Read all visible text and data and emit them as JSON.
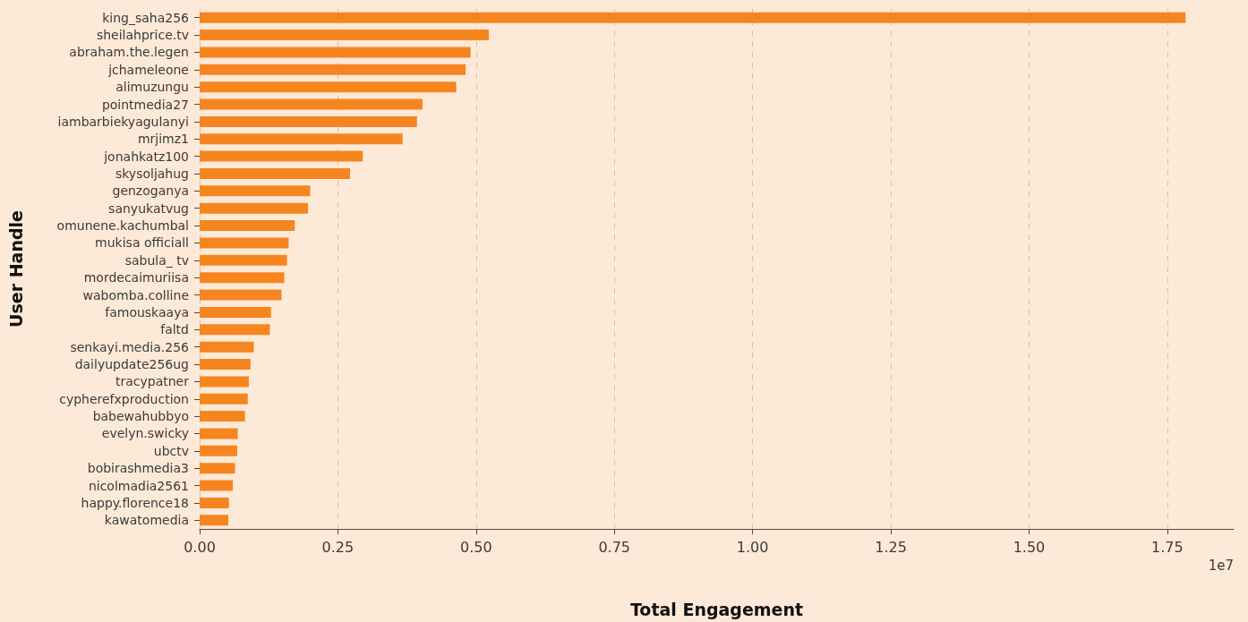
{
  "chart_data": {
    "type": "bar",
    "orientation": "horizontal",
    "xlabel": "Total Engagement",
    "ylabel": "User Handle",
    "annotations": [
      "1e7"
    ],
    "categories": [
      "king_saha256",
      "sheilahprice.tv",
      "abraham.the.legen",
      "jchameleone",
      "alimuzungu",
      "pointmedia27",
      "iambarbiekyagulanyi",
      "mrjimz1",
      "jonahkatz100",
      "skysoljahug",
      "genzoganya",
      "sanyukatvug",
      "omunene.kachumbal",
      "mukisa officiall",
      "sabula_ tv",
      "mordecaimuriisa",
      "wabomba.colline",
      "famouskaaya",
      "faltd",
      "senkayi.media.256",
      "dailyupdate256ug",
      "tracypatner",
      "cypherefxproduction",
      "babewahubbyo",
      "evelyn.swicky",
      "ubctv",
      "bobirashmedia3",
      "nicolmadia2561",
      "happy.florence18",
      "kawatomedia"
    ],
    "values": [
      1.783,
      0.523,
      0.49,
      0.481,
      0.464,
      0.403,
      0.393,
      0.367,
      0.295,
      0.272,
      0.2,
      0.196,
      0.172,
      0.161,
      0.158,
      0.153,
      0.148,
      0.129,
      0.127,
      0.098,
      0.092,
      0.089,
      0.087,
      0.082,
      0.069,
      0.068,
      0.064,
      0.06,
      0.053,
      0.052
    ],
    "color": "#f5861f",
    "xlim": [
      0,
      1.87
    ],
    "xticks": [
      {
        "value": 0,
        "label": "0.00"
      },
      {
        "value": 0.25,
        "label": "0.25"
      },
      {
        "value": 0.5,
        "label": "0.50"
      },
      {
        "value": 0.75,
        "label": "0.75"
      },
      {
        "value": 1,
        "label": "1.00"
      },
      {
        "value": 1.25,
        "label": "1.25"
      },
      {
        "value": 1.5,
        "label": "1.50"
      },
      {
        "value": 1.75,
        "label": "1.75"
      }
    ],
    "grid": "x"
  }
}
